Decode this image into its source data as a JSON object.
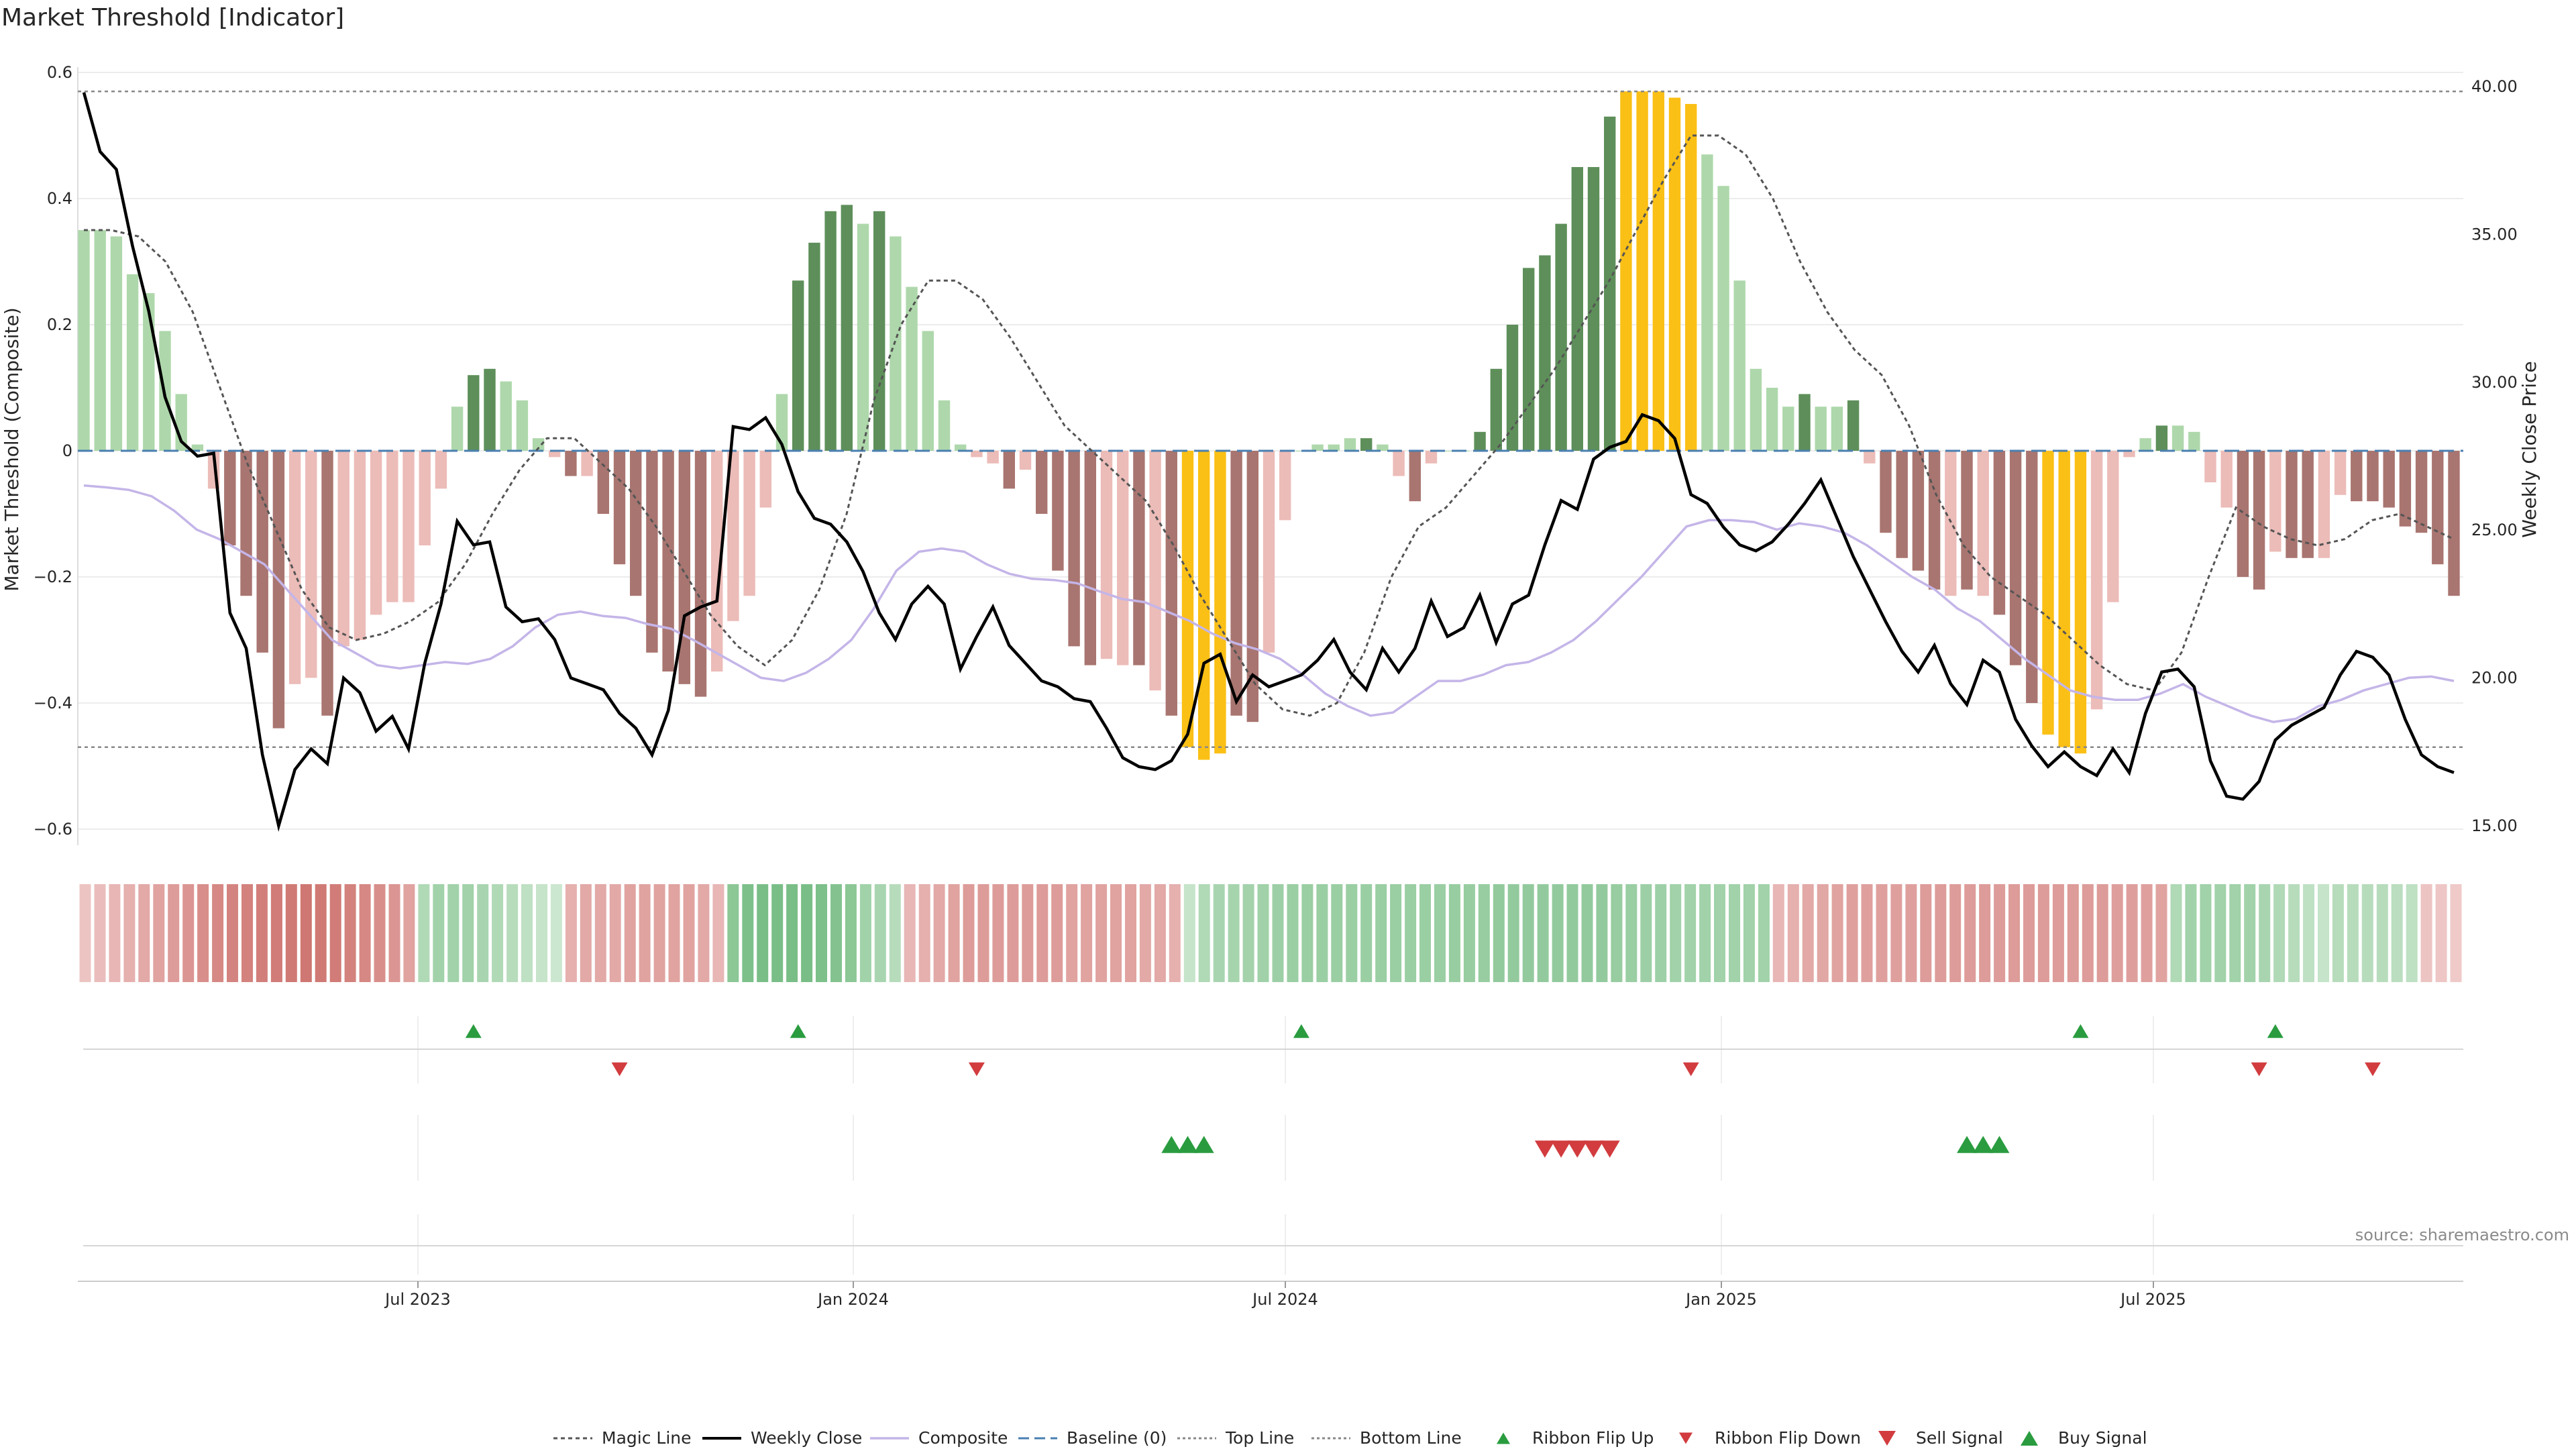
{
  "chart_data": {
    "type": "bar",
    "title": "Market Threshold [Indicator]",
    "ylabel": "Market Threshold (Composite)",
    "y2label": "Weekly Close Price",
    "ylim": [
      -0.62,
      0.62
    ],
    "y2lim": [
      14.5,
      40.5
    ],
    "yticks": [
      "0.6",
      "0.4",
      "0.2",
      "0",
      "−0.2",
      "−0.4",
      "−0.6"
    ],
    "y2ticks": [
      "40.00",
      "35.00",
      "30.00",
      "25.00",
      "20.00",
      "15.00"
    ],
    "xticks": [
      "Jul 2023",
      "Jan 2024",
      "Jul 2024",
      "Jan 2025",
      "Jul 2025"
    ],
    "source": "source: sharemaestro.com",
    "top_line": 0.57,
    "bottom_line": -0.47,
    "baseline": 0,
    "colors": {
      "strong_pos": "#5e8f5a",
      "weak_pos": "#aed8ab",
      "strong_neg": "#a97570",
      "weak_neg": "#ecbcb8",
      "extreme": "#fbc016",
      "close": "#000000",
      "composite": "#c4b5e8",
      "magic": "#555555",
      "up": "#2a9c3f",
      "down": "#d23c3f"
    },
    "bars": [
      [
        0.35,
        "w"
      ],
      [
        0.35,
        "w"
      ],
      [
        0.34,
        "w"
      ],
      [
        0.28,
        "w"
      ],
      [
        0.25,
        "w"
      ],
      [
        0.19,
        "w"
      ],
      [
        0.09,
        "w"
      ],
      [
        0.01,
        "w"
      ],
      [
        -0.06,
        "wn"
      ],
      [
        -0.15,
        "sn"
      ],
      [
        -0.23,
        "sn"
      ],
      [
        -0.32,
        "sn"
      ],
      [
        -0.44,
        "sn"
      ],
      [
        -0.37,
        "wn"
      ],
      [
        -0.36,
        "wn"
      ],
      [
        -0.42,
        "sn"
      ],
      [
        -0.31,
        "wn"
      ],
      [
        -0.3,
        "wn"
      ],
      [
        -0.26,
        "wn"
      ],
      [
        -0.24,
        "wn"
      ],
      [
        -0.24,
        "wn"
      ],
      [
        -0.15,
        "wn"
      ],
      [
        -0.06,
        "wn"
      ],
      [
        0.07,
        "w"
      ],
      [
        0.12,
        "s"
      ],
      [
        0.13,
        "s"
      ],
      [
        0.11,
        "w"
      ],
      [
        0.08,
        "w"
      ],
      [
        0.02,
        "w"
      ],
      [
        -0.01,
        "wn"
      ],
      [
        -0.04,
        "sn"
      ],
      [
        -0.04,
        "wn"
      ],
      [
        -0.1,
        "sn"
      ],
      [
        -0.18,
        "sn"
      ],
      [
        -0.23,
        "sn"
      ],
      [
        -0.32,
        "sn"
      ],
      [
        -0.35,
        "sn"
      ],
      [
        -0.37,
        "sn"
      ],
      [
        -0.39,
        "sn"
      ],
      [
        -0.35,
        "wn"
      ],
      [
        -0.27,
        "wn"
      ],
      [
        -0.23,
        "wn"
      ],
      [
        -0.09,
        "wn"
      ],
      [
        0.09,
        "w"
      ],
      [
        0.27,
        "s"
      ],
      [
        0.33,
        "s"
      ],
      [
        0.38,
        "s"
      ],
      [
        0.39,
        "s"
      ],
      [
        0.36,
        "w"
      ],
      [
        0.38,
        "s"
      ],
      [
        0.34,
        "w"
      ],
      [
        0.26,
        "w"
      ],
      [
        0.19,
        "w"
      ],
      [
        0.08,
        "w"
      ],
      [
        0.01,
        "w"
      ],
      [
        -0.01,
        "wn"
      ],
      [
        -0.02,
        "wn"
      ],
      [
        -0.06,
        "sn"
      ],
      [
        -0.03,
        "wn"
      ],
      [
        -0.1,
        "sn"
      ],
      [
        -0.19,
        "sn"
      ],
      [
        -0.31,
        "sn"
      ],
      [
        -0.34,
        "sn"
      ],
      [
        -0.33,
        "wn"
      ],
      [
        -0.34,
        "wn"
      ],
      [
        -0.34,
        "sn"
      ],
      [
        -0.38,
        "wn"
      ],
      [
        -0.42,
        "sn"
      ],
      [
        -0.47,
        "x"
      ],
      [
        -0.49,
        "x"
      ],
      [
        -0.48,
        "x"
      ],
      [
        -0.42,
        "sn"
      ],
      [
        -0.43,
        "sn"
      ],
      [
        -0.32,
        "wn"
      ],
      [
        -0.11,
        "wn"
      ],
      [
        0.0,
        "w"
      ],
      [
        0.01,
        "w"
      ],
      [
        0.01,
        "w"
      ],
      [
        0.02,
        "w"
      ],
      [
        0.02,
        "s"
      ],
      [
        0.01,
        "w"
      ],
      [
        -0.04,
        "wn"
      ],
      [
        -0.08,
        "sn"
      ],
      [
        -0.02,
        "wn"
      ],
      [
        0.0,
        "w"
      ],
      [
        0.0,
        "w"
      ],
      [
        0.03,
        "s"
      ],
      [
        0.13,
        "s"
      ],
      [
        0.2,
        "s"
      ],
      [
        0.29,
        "s"
      ],
      [
        0.31,
        "s"
      ],
      [
        0.36,
        "s"
      ],
      [
        0.45,
        "s"
      ],
      [
        0.45,
        "s"
      ],
      [
        0.53,
        "s"
      ],
      [
        0.57,
        "x"
      ],
      [
        0.57,
        "x"
      ],
      [
        0.57,
        "x"
      ],
      [
        0.56,
        "x"
      ],
      [
        0.55,
        "x"
      ],
      [
        0.47,
        "w"
      ],
      [
        0.42,
        "w"
      ],
      [
        0.27,
        "w"
      ],
      [
        0.13,
        "w"
      ],
      [
        0.1,
        "w"
      ],
      [
        0.07,
        "w"
      ],
      [
        0.09,
        "s"
      ],
      [
        0.07,
        "w"
      ],
      [
        0.07,
        "w"
      ],
      [
        0.08,
        "s"
      ],
      [
        -0.02,
        "wn"
      ],
      [
        -0.13,
        "sn"
      ],
      [
        -0.17,
        "sn"
      ],
      [
        -0.19,
        "sn"
      ],
      [
        -0.22,
        "sn"
      ],
      [
        -0.23,
        "wn"
      ],
      [
        -0.22,
        "sn"
      ],
      [
        -0.23,
        "wn"
      ],
      [
        -0.26,
        "sn"
      ],
      [
        -0.34,
        "sn"
      ],
      [
        -0.4,
        "sn"
      ],
      [
        -0.45,
        "x"
      ],
      [
        -0.47,
        "x"
      ],
      [
        -0.48,
        "x"
      ],
      [
        -0.41,
        "wn"
      ],
      [
        -0.24,
        "wn"
      ],
      [
        -0.01,
        "wn"
      ],
      [
        0.02,
        "w"
      ],
      [
        0.04,
        "s"
      ],
      [
        0.04,
        "w"
      ],
      [
        0.03,
        "w"
      ],
      [
        -0.05,
        "wn"
      ],
      [
        -0.09,
        "wn"
      ],
      [
        -0.2,
        "sn"
      ],
      [
        -0.22,
        "sn"
      ],
      [
        -0.16,
        "wn"
      ],
      [
        -0.17,
        "sn"
      ],
      [
        -0.17,
        "sn"
      ],
      [
        -0.17,
        "wn"
      ],
      [
        -0.07,
        "wn"
      ],
      [
        -0.08,
        "sn"
      ],
      [
        -0.08,
        "sn"
      ],
      [
        -0.09,
        "sn"
      ],
      [
        -0.12,
        "sn"
      ],
      [
        -0.13,
        "sn"
      ],
      [
        -0.18,
        "sn"
      ],
      [
        -0.23,
        "sn"
      ]
    ],
    "close": [
      39.8,
      37.8,
      37.2,
      34.6,
      32.4,
      29.5,
      28.0,
      27.5,
      27.6,
      22.2,
      21.0,
      17.4,
      15.0,
      16.9,
      17.6,
      17.1,
      20.0,
      19.5,
      18.2,
      18.7,
      17.6,
      20.5,
      22.5,
      25.3,
      24.5,
      24.6,
      22.4,
      21.9,
      22.0,
      21.3,
      20.0,
      19.8,
      19.6,
      18.8,
      18.3,
      17.4,
      18.9,
      22.1,
      22.4,
      22.6,
      28.5,
      28.4,
      28.8,
      27.9,
      26.3,
      25.4,
      25.2,
      24.6,
      23.6,
      22.2,
      21.3,
      22.5,
      23.1,
      22.5,
      20.3,
      21.4,
      22.4,
      21.1,
      20.5,
      19.9,
      19.7,
      19.3,
      19.2,
      18.3,
      17.3,
      17.0,
      16.9,
      17.2,
      18.1,
      20.5,
      20.8,
      19.2,
      20.1,
      19.7,
      19.9,
      20.1,
      20.6,
      21.3,
      20.2,
      19.6,
      21.0,
      20.2,
      21.0,
      22.6,
      21.4,
      21.7,
      22.8,
      21.2,
      22.5,
      22.8,
      24.5,
      26.0,
      25.7,
      27.4,
      27.8,
      28.0,
      28.9,
      28.7,
      28.1,
      26.2,
      25.9,
      25.1,
      24.5,
      24.3,
      24.6,
      25.2,
      25.9,
      26.7,
      25.4,
      24.1,
      23.0,
      21.9,
      20.9,
      20.2,
      21.1,
      19.8,
      19.1,
      20.6,
      20.2,
      18.6,
      17.7,
      17.0,
      17.5,
      17.0,
      16.7,
      17.6,
      16.8,
      18.8,
      20.2,
      20.3,
      19.7,
      17.2,
      16.0,
      15.9,
      16.5,
      17.9,
      18.4,
      18.7,
      19.0,
      20.1,
      20.9,
      20.7,
      20.1,
      18.6,
      17.4,
      17.0,
      16.8
    ],
    "composite": [
      -0.055,
      -0.058,
      -0.062,
      -0.072,
      -0.095,
      -0.125,
      -0.14,
      -0.16,
      -0.18,
      -0.22,
      -0.26,
      -0.3,
      -0.32,
      -0.34,
      -0.345,
      -0.34,
      -0.335,
      -0.338,
      -0.33,
      -0.31,
      -0.28,
      -0.26,
      -0.255,
      -0.262,
      -0.265,
      -0.275,
      -0.282,
      -0.3,
      -0.32,
      -0.34,
      -0.36,
      -0.365,
      -0.352,
      -0.33,
      -0.3,
      -0.25,
      -0.19,
      -0.16,
      -0.155,
      -0.16,
      -0.18,
      -0.195,
      -0.203,
      -0.205,
      -0.21,
      -0.223,
      -0.235,
      -0.24,
      -0.255,
      -0.27,
      -0.29,
      -0.305,
      -0.315,
      -0.33,
      -0.355,
      -0.385,
      -0.405,
      -0.42,
      -0.415,
      -0.39,
      -0.365,
      -0.365,
      -0.355,
      -0.34,
      -0.335,
      -0.32,
      -0.3,
      -0.27,
      -0.235,
      -0.2,
      -0.16,
      -0.12,
      -0.11,
      -0.11,
      -0.113,
      -0.125,
      -0.115,
      -0.12,
      -0.13,
      -0.15,
      -0.175,
      -0.2,
      -0.22,
      -0.25,
      -0.27,
      -0.3,
      -0.33,
      -0.355,
      -0.38,
      -0.39,
      -0.395,
      -0.395,
      -0.385,
      -0.37,
      -0.39,
      -0.405,
      -0.42,
      -0.43,
      -0.425,
      -0.405,
      -0.395,
      -0.38,
      -0.37,
      -0.36,
      -0.358,
      -0.365
    ],
    "magic": [
      0.35,
      0.35,
      0.34,
      0.3,
      0.22,
      0.1,
      -0.02,
      -0.12,
      -0.22,
      -0.28,
      -0.3,
      -0.29,
      -0.27,
      -0.24,
      -0.18,
      -0.1,
      -0.03,
      0.02,
      0.02,
      -0.02,
      -0.06,
      -0.12,
      -0.19,
      -0.26,
      -0.31,
      -0.34,
      -0.3,
      -0.22,
      -0.1,
      0.08,
      0.2,
      0.27,
      0.27,
      0.24,
      0.18,
      0.11,
      0.04,
      0.0,
      -0.04,
      -0.08,
      -0.15,
      -0.23,
      -0.3,
      -0.37,
      -0.41,
      -0.42,
      -0.4,
      -0.32,
      -0.2,
      -0.12,
      -0.09,
      -0.04,
      0.01,
      0.07,
      0.13,
      0.2,
      0.27,
      0.35,
      0.43,
      0.5,
      0.5,
      0.47,
      0.4,
      0.3,
      0.22,
      0.16,
      0.12,
      0.04,
      -0.07,
      -0.15,
      -0.2,
      -0.23,
      -0.26,
      -0.3,
      -0.34,
      -0.37,
      -0.38,
      -0.32,
      -0.2,
      -0.09,
      -0.12,
      -0.14,
      -0.15,
      -0.14,
      -0.11,
      -0.1,
      -0.12,
      -0.14
    ],
    "ribbon": [
      -0.2,
      -0.25,
      -0.3,
      -0.35,
      -0.4,
      -0.45,
      -0.5,
      -0.55,
      -0.6,
      -0.65,
      -0.68,
      -0.7,
      -0.72,
      -0.74,
      -0.76,
      -0.78,
      -0.76,
      -0.74,
      -0.7,
      -0.65,
      -0.6,
      -0.55,
      -0.45,
      0.35,
      0.45,
      0.45,
      0.45,
      0.4,
      0.35,
      0.3,
      0.25,
      0.2,
      0.15,
      -0.35,
      -0.4,
      -0.4,
      -0.4,
      -0.45,
      -0.45,
      -0.45,
      -0.45,
      -0.45,
      -0.4,
      -0.3,
      0.6,
      0.7,
      0.72,
      0.72,
      0.72,
      0.72,
      0.7,
      0.65,
      0.6,
      0.45,
      0.4,
      0.3,
      -0.3,
      -0.35,
      -0.4,
      -0.45,
      -0.5,
      -0.5,
      -0.5,
      -0.5,
      -0.5,
      -0.5,
      -0.5,
      -0.45,
      -0.45,
      -0.45,
      -0.45,
      -0.45,
      -0.4,
      -0.4,
      -0.35,
      0.2,
      0.35,
      0.4,
      0.42,
      0.44,
      0.46,
      0.48,
      0.5,
      0.5,
      0.5,
      0.5,
      0.5,
      0.5,
      0.5,
      0.5,
      0.5,
      0.5,
      0.5,
      0.52,
      0.52,
      0.52,
      0.55,
      0.55,
      0.55,
      0.55,
      0.55,
      0.55,
      0.55,
      0.55,
      0.52,
      0.5,
      0.48,
      0.47,
      0.45,
      0.45,
      0.45,
      0.45,
      0.45,
      0.45,
      0.45,
      -0.3,
      -0.35,
      -0.4,
      -0.42,
      -0.45,
      -0.47,
      -0.47,
      -0.47,
      -0.47,
      -0.47,
      -0.5,
      -0.5,
      -0.5,
      -0.5,
      -0.5,
      -0.5,
      -0.5,
      -0.5,
      -0.5,
      -0.5,
      -0.5,
      -0.5,
      -0.5,
      -0.48,
      -0.48,
      -0.47,
      -0.45,
      0.35,
      0.45,
      0.45,
      0.45,
      0.45,
      0.45,
      0.4,
      0.35,
      0.3,
      0.25,
      0.2,
      0.3,
      0.3,
      0.3,
      0.3,
      0.28,
      0.25,
      -0.2,
      -0.18,
      -0.15
    ],
    "ribbon_flip_up": [
      24,
      44,
      75,
      123,
      135
    ],
    "ribbon_flip_down": [
      33,
      55,
      99,
      134,
      141
    ],
    "buy_signals": [
      67,
      68,
      69,
      116,
      117,
      118
    ],
    "sell_signals": [
      90,
      91,
      92,
      93,
      94
    ],
    "legend": [
      "Magic Line",
      "Weekly Close",
      "Composite",
      "Baseline (0)",
      "Top Line",
      "Bottom Line",
      "Ribbon Flip Up",
      "Ribbon Flip Down",
      "Sell Signal",
      "Buy Signal"
    ]
  }
}
